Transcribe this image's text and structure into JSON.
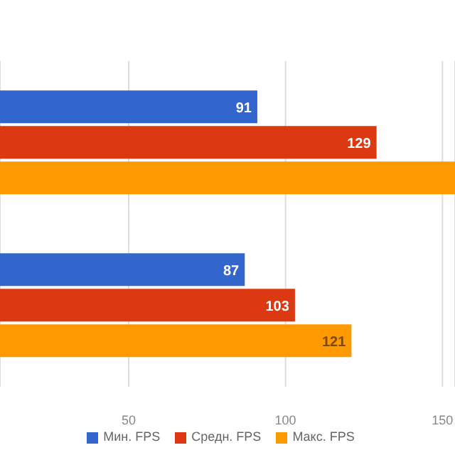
{
  "chart_data": {
    "type": "bar",
    "orientation": "horizontal",
    "categories": [
      null,
      null
    ],
    "series": [
      {
        "name": "Мин. FPS",
        "color": "#3366cc",
        "values": [
          91,
          87
        ],
        "value_labels": [
          "91",
          "87"
        ]
      },
      {
        "name": "Средн. FPS",
        "color": "#dc3912",
        "values": [
          129,
          103
        ],
        "value_labels": [
          "129",
          "103"
        ]
      },
      {
        "name": "Макс. FPS",
        "color": "#ff9900",
        "values": [
          154,
          121
        ],
        "value_labels": [
          null,
          "121"
        ]
      }
    ],
    "xlim": [
      9,
      154
    ],
    "xticks": [
      50,
      100,
      150
    ],
    "grid": "x",
    "legend": "bottom"
  }
}
